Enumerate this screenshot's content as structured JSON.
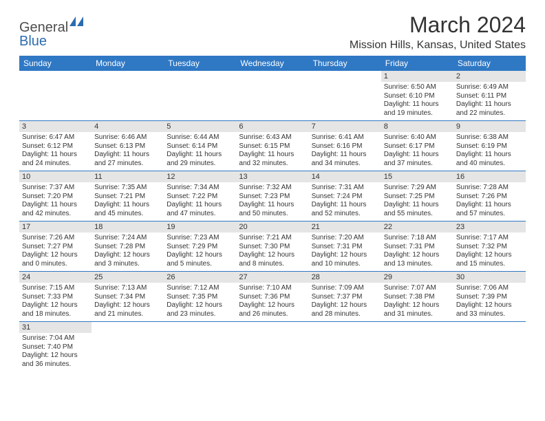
{
  "logo": {
    "text1": "General",
    "text2": "Blue"
  },
  "title": "March 2024",
  "location": "Mission Hills, Kansas, United States",
  "colors": {
    "header_bg": "#2f78c4",
    "header_fg": "#ffffff",
    "daynum_bg": "#e5e5e5",
    "row_border": "#2f78c4",
    "text": "#333333",
    "logo_gray": "#4d4d4d",
    "logo_blue": "#2b6cb0"
  },
  "dayNames": [
    "Sunday",
    "Monday",
    "Tuesday",
    "Wednesday",
    "Thursday",
    "Friday",
    "Saturday"
  ],
  "weeks": [
    [
      {
        "empty": true
      },
      {
        "empty": true
      },
      {
        "empty": true
      },
      {
        "empty": true
      },
      {
        "empty": true
      },
      {
        "n": "1",
        "sr": "Sunrise: 6:50 AM",
        "ss": "Sunset: 6:10 PM",
        "dl": "Daylight: 11 hours and 19 minutes."
      },
      {
        "n": "2",
        "sr": "Sunrise: 6:49 AM",
        "ss": "Sunset: 6:11 PM",
        "dl": "Daylight: 11 hours and 22 minutes."
      }
    ],
    [
      {
        "n": "3",
        "sr": "Sunrise: 6:47 AM",
        "ss": "Sunset: 6:12 PM",
        "dl": "Daylight: 11 hours and 24 minutes."
      },
      {
        "n": "4",
        "sr": "Sunrise: 6:46 AM",
        "ss": "Sunset: 6:13 PM",
        "dl": "Daylight: 11 hours and 27 minutes."
      },
      {
        "n": "5",
        "sr": "Sunrise: 6:44 AM",
        "ss": "Sunset: 6:14 PM",
        "dl": "Daylight: 11 hours and 29 minutes."
      },
      {
        "n": "6",
        "sr": "Sunrise: 6:43 AM",
        "ss": "Sunset: 6:15 PM",
        "dl": "Daylight: 11 hours and 32 minutes."
      },
      {
        "n": "7",
        "sr": "Sunrise: 6:41 AM",
        "ss": "Sunset: 6:16 PM",
        "dl": "Daylight: 11 hours and 34 minutes."
      },
      {
        "n": "8",
        "sr": "Sunrise: 6:40 AM",
        "ss": "Sunset: 6:17 PM",
        "dl": "Daylight: 11 hours and 37 minutes."
      },
      {
        "n": "9",
        "sr": "Sunrise: 6:38 AM",
        "ss": "Sunset: 6:19 PM",
        "dl": "Daylight: 11 hours and 40 minutes."
      }
    ],
    [
      {
        "n": "10",
        "sr": "Sunrise: 7:37 AM",
        "ss": "Sunset: 7:20 PM",
        "dl": "Daylight: 11 hours and 42 minutes."
      },
      {
        "n": "11",
        "sr": "Sunrise: 7:35 AM",
        "ss": "Sunset: 7:21 PM",
        "dl": "Daylight: 11 hours and 45 minutes."
      },
      {
        "n": "12",
        "sr": "Sunrise: 7:34 AM",
        "ss": "Sunset: 7:22 PM",
        "dl": "Daylight: 11 hours and 47 minutes."
      },
      {
        "n": "13",
        "sr": "Sunrise: 7:32 AM",
        "ss": "Sunset: 7:23 PM",
        "dl": "Daylight: 11 hours and 50 minutes."
      },
      {
        "n": "14",
        "sr": "Sunrise: 7:31 AM",
        "ss": "Sunset: 7:24 PM",
        "dl": "Daylight: 11 hours and 52 minutes."
      },
      {
        "n": "15",
        "sr": "Sunrise: 7:29 AM",
        "ss": "Sunset: 7:25 PM",
        "dl": "Daylight: 11 hours and 55 minutes."
      },
      {
        "n": "16",
        "sr": "Sunrise: 7:28 AM",
        "ss": "Sunset: 7:26 PM",
        "dl": "Daylight: 11 hours and 57 minutes."
      }
    ],
    [
      {
        "n": "17",
        "sr": "Sunrise: 7:26 AM",
        "ss": "Sunset: 7:27 PM",
        "dl": "Daylight: 12 hours and 0 minutes."
      },
      {
        "n": "18",
        "sr": "Sunrise: 7:24 AM",
        "ss": "Sunset: 7:28 PM",
        "dl": "Daylight: 12 hours and 3 minutes."
      },
      {
        "n": "19",
        "sr": "Sunrise: 7:23 AM",
        "ss": "Sunset: 7:29 PM",
        "dl": "Daylight: 12 hours and 5 minutes."
      },
      {
        "n": "20",
        "sr": "Sunrise: 7:21 AM",
        "ss": "Sunset: 7:30 PM",
        "dl": "Daylight: 12 hours and 8 minutes."
      },
      {
        "n": "21",
        "sr": "Sunrise: 7:20 AM",
        "ss": "Sunset: 7:31 PM",
        "dl": "Daylight: 12 hours and 10 minutes."
      },
      {
        "n": "22",
        "sr": "Sunrise: 7:18 AM",
        "ss": "Sunset: 7:31 PM",
        "dl": "Daylight: 12 hours and 13 minutes."
      },
      {
        "n": "23",
        "sr": "Sunrise: 7:17 AM",
        "ss": "Sunset: 7:32 PM",
        "dl": "Daylight: 12 hours and 15 minutes."
      }
    ],
    [
      {
        "n": "24",
        "sr": "Sunrise: 7:15 AM",
        "ss": "Sunset: 7:33 PM",
        "dl": "Daylight: 12 hours and 18 minutes."
      },
      {
        "n": "25",
        "sr": "Sunrise: 7:13 AM",
        "ss": "Sunset: 7:34 PM",
        "dl": "Daylight: 12 hours and 21 minutes."
      },
      {
        "n": "26",
        "sr": "Sunrise: 7:12 AM",
        "ss": "Sunset: 7:35 PM",
        "dl": "Daylight: 12 hours and 23 minutes."
      },
      {
        "n": "27",
        "sr": "Sunrise: 7:10 AM",
        "ss": "Sunset: 7:36 PM",
        "dl": "Daylight: 12 hours and 26 minutes."
      },
      {
        "n": "28",
        "sr": "Sunrise: 7:09 AM",
        "ss": "Sunset: 7:37 PM",
        "dl": "Daylight: 12 hours and 28 minutes."
      },
      {
        "n": "29",
        "sr": "Sunrise: 7:07 AM",
        "ss": "Sunset: 7:38 PM",
        "dl": "Daylight: 12 hours and 31 minutes."
      },
      {
        "n": "30",
        "sr": "Sunrise: 7:06 AM",
        "ss": "Sunset: 7:39 PM",
        "dl": "Daylight: 12 hours and 33 minutes."
      }
    ],
    [
      {
        "n": "31",
        "sr": "Sunrise: 7:04 AM",
        "ss": "Sunset: 7:40 PM",
        "dl": "Daylight: 12 hours and 36 minutes."
      },
      {
        "empty": true
      },
      {
        "empty": true
      },
      {
        "empty": true
      },
      {
        "empty": true
      },
      {
        "empty": true
      },
      {
        "empty": true
      }
    ]
  ]
}
